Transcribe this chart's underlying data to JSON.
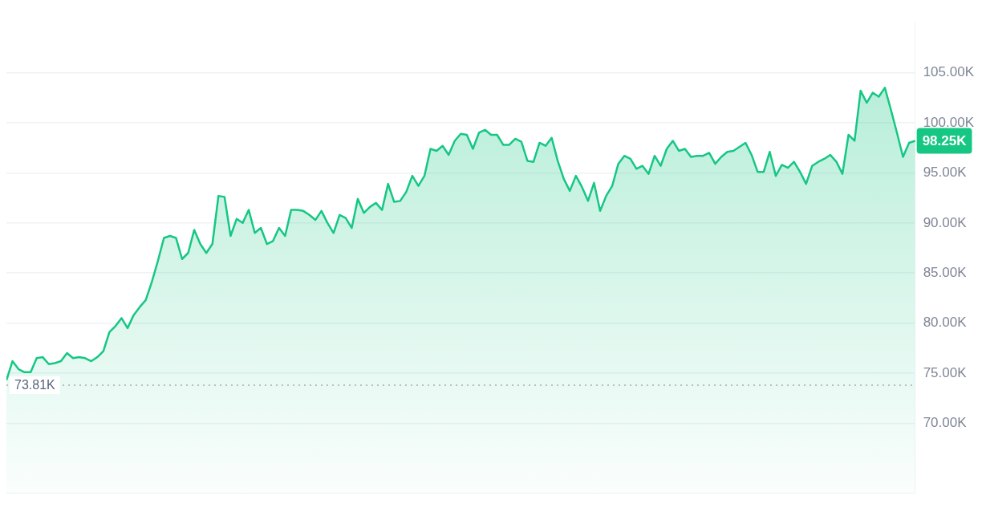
{
  "chart_data": {
    "type": "area",
    "categories": [
      null,
      null,
      null,
      null,
      null,
      null,
      null,
      null,
      null,
      null,
      null,
      null,
      null,
      null,
      null,
      null,
      null,
      null,
      null,
      null,
      null,
      null,
      null,
      null,
      null,
      null,
      null,
      null,
      null,
      null,
      null,
      null,
      null,
      null,
      null,
      null,
      null,
      null,
      null,
      null,
      null,
      null,
      null,
      null,
      null,
      null,
      null,
      null,
      null,
      null,
      null,
      null,
      null,
      null,
      null,
      null,
      null,
      null,
      null,
      null,
      null,
      null,
      null,
      null,
      null,
      null,
      null,
      null,
      null,
      null,
      null,
      null,
      null,
      null,
      null,
      null,
      null,
      null,
      null,
      null,
      null,
      null,
      null,
      null,
      null,
      null,
      null,
      null,
      null,
      null,
      null,
      null,
      null,
      null,
      null,
      null,
      null,
      null,
      null,
      null,
      null,
      null,
      null,
      null,
      null,
      null,
      null,
      null,
      null,
      null,
      null,
      null,
      null,
      null,
      null,
      null,
      null,
      null,
      null,
      null,
      null,
      null,
      null,
      null,
      null,
      null,
      null,
      null,
      null,
      null,
      null,
      null,
      null,
      null,
      null,
      null,
      null,
      null,
      null,
      null,
      null,
      null,
      null,
      null,
      null,
      null,
      null,
      null,
      null,
      null,
      null
    ],
    "series": [
      {
        "color": "#16c784",
        "values": [
          74.3,
          76.2,
          75.4,
          75.1,
          75.1,
          76.5,
          76.6,
          75.9,
          76.0,
          76.2,
          77.0,
          76.5,
          76.6,
          76.5,
          76.2,
          76.6,
          77.2,
          79.1,
          79.7,
          80.5,
          79.5,
          80.8,
          81.6,
          82.3,
          84.1,
          86.2,
          88.5,
          88.7,
          88.5,
          86.4,
          87.0,
          89.3,
          87.9,
          87.0,
          87.9,
          92.7,
          92.6,
          88.7,
          90.4,
          90.0,
          91.3,
          89.0,
          89.5,
          87.9,
          88.2,
          89.5,
          88.7,
          91.3,
          91.3,
          91.2,
          90.8,
          90.3,
          91.2,
          90.0,
          89.0,
          90.8,
          90.5,
          89.5,
          92.4,
          91.0,
          91.6,
          92.0,
          91.3,
          93.9,
          92.1,
          92.2,
          93.1,
          94.7,
          93.7,
          94.7,
          97.4,
          97.2,
          97.7,
          96.8,
          98.2,
          98.9,
          98.8,
          97.4,
          99.0,
          99.3,
          98.8,
          98.8,
          97.8,
          97.8,
          98.4,
          98.1,
          96.2,
          96.1,
          98.0,
          97.7,
          98.5,
          96.2,
          94.4,
          93.2,
          94.7,
          93.6,
          92.2,
          94.0,
          91.2,
          92.7,
          93.7,
          95.9,
          96.7,
          96.4,
          95.4,
          95.7,
          94.9,
          96.7,
          95.7,
          97.4,
          98.2,
          97.2,
          97.4,
          96.6,
          96.7,
          96.7,
          97.0,
          95.9,
          96.6,
          97.1,
          97.2,
          97.6,
          98.0,
          96.8,
          95.1,
          95.1,
          97.1,
          94.7,
          95.8,
          95.5,
          96.1,
          95.1,
          93.9,
          95.7,
          96.1,
          96.4,
          96.8,
          96.1,
          94.9,
          98.8,
          98.2,
          103.2,
          102.0,
          103.0,
          102.6,
          103.5,
          101.3,
          99.0,
          96.6,
          98.0,
          98.2
        ]
      }
    ],
    "ylim": [
      63,
      110
    ],
    "yticks": [
      {
        "value": 70,
        "label": "70.00K"
      },
      {
        "value": 75,
        "label": "75.00K"
      },
      {
        "value": 80,
        "label": "80.00K"
      },
      {
        "value": 85,
        "label": "85.00K"
      },
      {
        "value": 90,
        "label": "90.00K"
      },
      {
        "value": 95,
        "label": "95.00K"
      },
      {
        "value": 100,
        "label": "100.00K"
      },
      {
        "value": 105,
        "label": "105.00K"
      }
    ],
    "tick_labels": "y",
    "grid": "y",
    "legend": false,
    "ref_lines": [
      {
        "axis": "y",
        "value": 73.81,
        "label": "73.81K",
        "color": "#a6aab5",
        "line_style": "dotted"
      }
    ],
    "annotations": [
      "98.25K"
    ]
  }
}
